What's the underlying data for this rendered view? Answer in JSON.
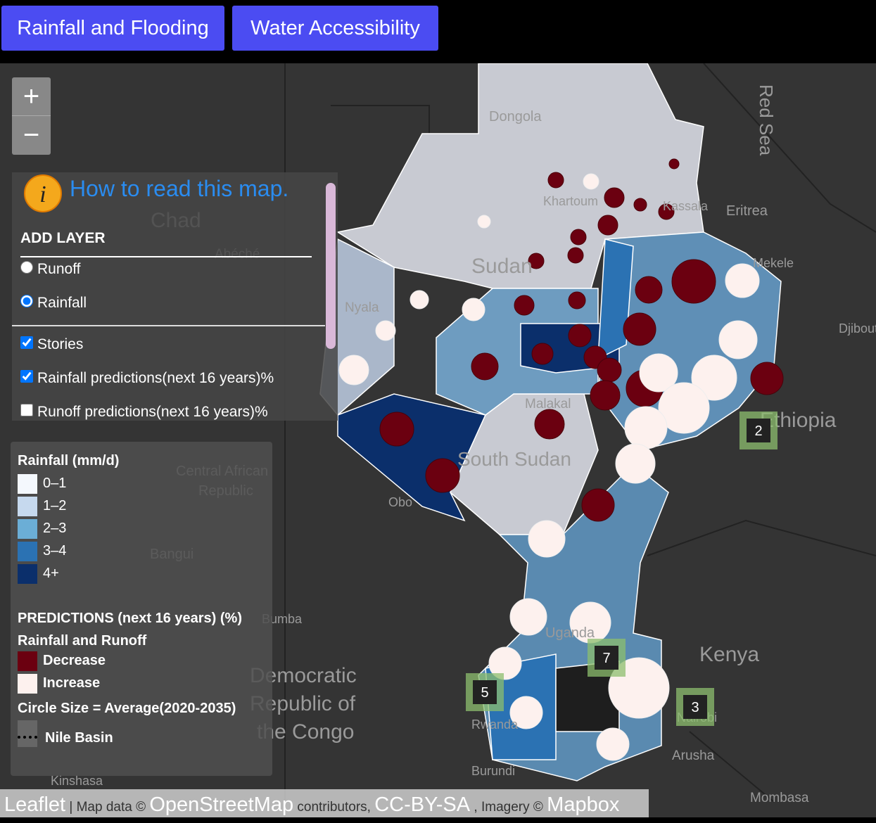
{
  "nav": {
    "buttons": [
      "Rainfall and Flooding",
      "Water Accessibility"
    ]
  },
  "zoom": {
    "in": "+",
    "out": "−"
  },
  "panel": {
    "info": "How to read this map.",
    "add_layer": "ADD LAYER",
    "radios": [
      "Runoff",
      "Rainfall"
    ],
    "checkboxes": [
      {
        "label": "Stories",
        "checked": true
      },
      {
        "label": "Rainfall predictions(next 16 years)%",
        "checked": true
      },
      {
        "label": "Runoff predictions(next 16 years)%",
        "checked": false
      }
    ]
  },
  "legend": {
    "title": "Rainfall (mm/d)",
    "items": [
      {
        "label": "0–1",
        "color": "#f4f8fd"
      },
      {
        "label": "1–2",
        "color": "#c6d9ee"
      },
      {
        "label": "2–3",
        "color": "#6baed6"
      },
      {
        "label": "3–4",
        "color": "#2b72b3"
      },
      {
        "label": "4+",
        "color": "#0b2f6b"
      }
    ],
    "predictions_title": "PREDICTIONS (next 16 years) (%)",
    "subtitle": "Rainfall and Runoff",
    "predictions": [
      {
        "label": "Decrease",
        "color": "#6b0010"
      },
      {
        "label": "Increase",
        "color": "#fdf1ee"
      }
    ],
    "circle_size": "Circle Size = Average(2020-2035)",
    "basin": "Nile Basin"
  },
  "stories": [
    "2",
    "5",
    "7",
    "3"
  ],
  "map_labels": [
    "Red Sea",
    "Dongola",
    "Khartoum",
    "Kassala",
    "Eritrea",
    "Mekele",
    "Djibouti",
    "Chad",
    "Abéché",
    "Sudan",
    "Nyala",
    "Ethiopia",
    "Malakal",
    "South Sudan",
    "Central African",
    "Republic",
    "Obo",
    "Bangui",
    "Bumba",
    "Uganda",
    "Kenya",
    "Democratic",
    "Republic of",
    "the Congo",
    "Nairobi",
    "Arusha",
    "Rwanda",
    "Burundi",
    "Kinshasa",
    "Mombasa"
  ],
  "attribution": [
    "Leaflet",
    "| Map data ©",
    "OpenStreetMap",
    "contributors,",
    "CC-BY-SA",
    ", Imagery ©",
    "Mapbox"
  ]
}
